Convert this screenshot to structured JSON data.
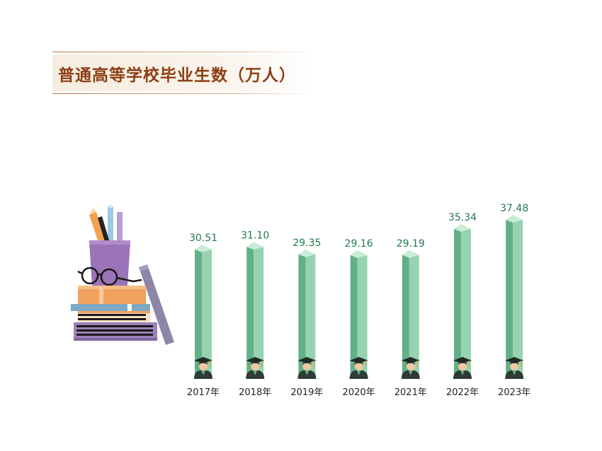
{
  "title": "普通高等学校毕业生数（万人）",
  "colors": {
    "title": "#8c3f14",
    "bar_front": "#62b087",
    "bar_side": "#97d3b1",
    "bar_top": "#c9ecd8",
    "label": "#237a4c"
  },
  "icons": [
    "graduate-icon",
    "books-pencil-cup-illustration"
  ],
  "chart_data": {
    "type": "bar",
    "categories": [
      "2017年",
      "2018年",
      "2019年",
      "2020年",
      "2021年",
      "2022年",
      "2023年"
    ],
    "values": [
      30.51,
      31.1,
      29.35,
      29.16,
      29.19,
      35.34,
      37.48
    ],
    "value_labels": [
      "30.51",
      "31.10",
      "29.35",
      "29.16",
      "29.19",
      "35.34",
      "37.48"
    ],
    "title": "普通高等学校毕业生数（万人）",
    "xlabel": "",
    "ylabel": "",
    "ylim": [
      0,
      37.48
    ],
    "grid": false,
    "legend": "none"
  }
}
